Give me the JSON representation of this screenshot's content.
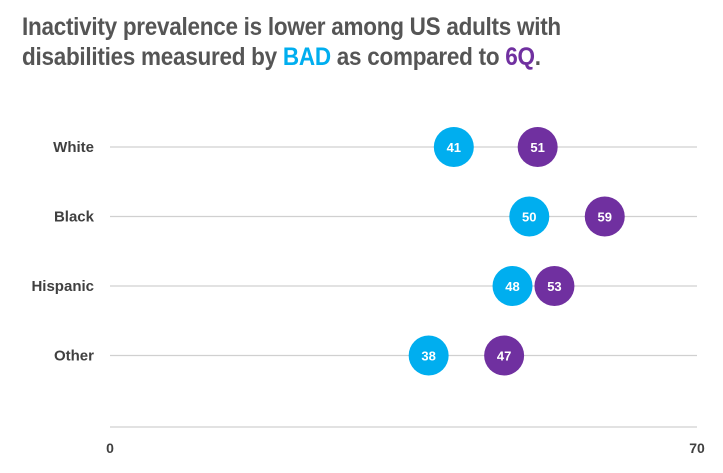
{
  "title": {
    "line1": "Inactivity prevalence is lower among US adults with",
    "line2_pre": "disabilities measured by ",
    "keyword_bad": "BAD",
    "line2_mid": " as compared to ",
    "keyword_6q": "6Q",
    "line2_end": "."
  },
  "chart_data": {
    "type": "scatter",
    "subtype": "dot-plot",
    "categories": [
      "White",
      "Black",
      "Hispanic",
      "Other"
    ],
    "series": [
      {
        "name": "BAD",
        "color": "#00aeef",
        "values": [
          41,
          50,
          48,
          38
        ]
      },
      {
        "name": "6Q",
        "color": "#7030a0",
        "values": [
          51,
          59,
          53,
          47
        ]
      }
    ],
    "xlim": [
      0,
      70
    ],
    "x_tick_labels": [
      "0",
      "70"
    ],
    "grid": true,
    "legend": "none"
  }
}
